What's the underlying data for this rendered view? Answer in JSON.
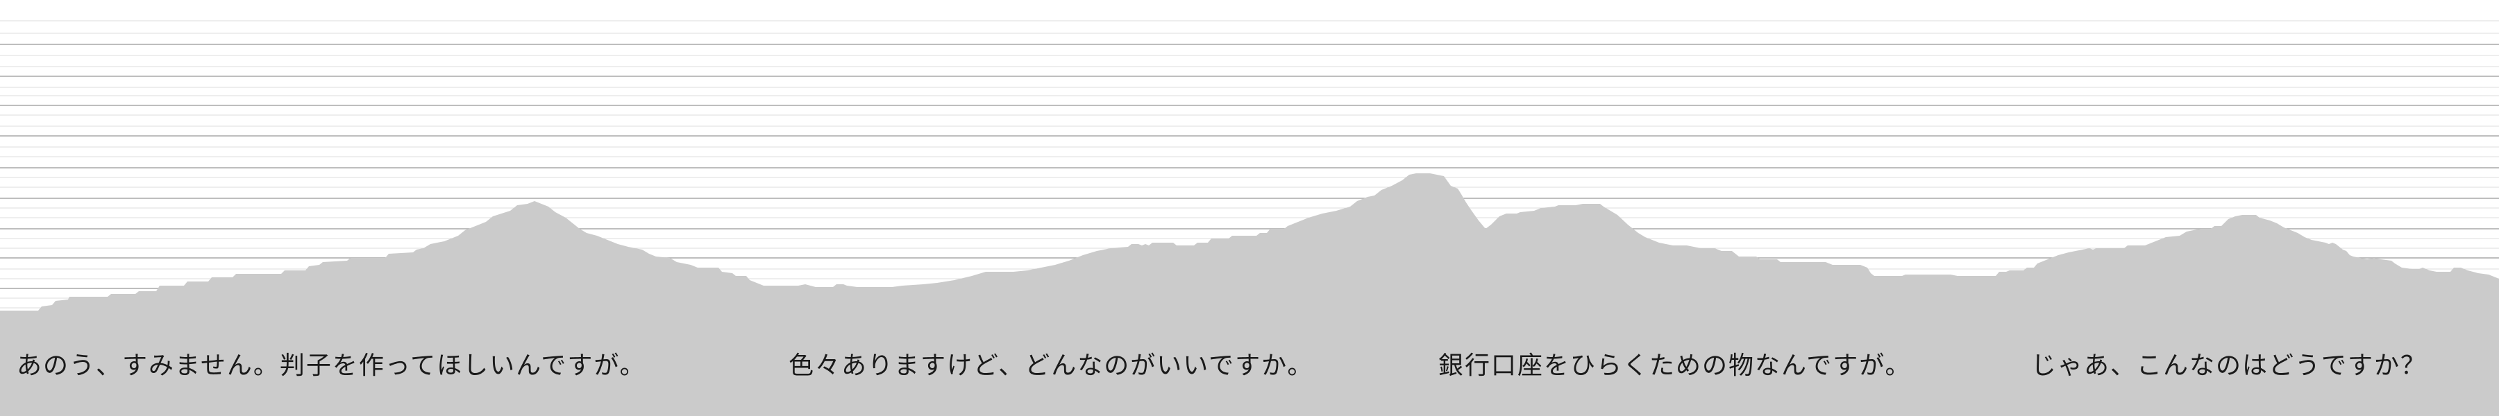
{
  "scene": {
    "background_color": "#ffffff",
    "mountain_color": "#cbcbcb",
    "line_color": "#9a9a9a"
  },
  "captions": [
    {
      "text": "あのう、すみません。判子を作ってほしいんですが。"
    },
    {
      "text": "色々ありますけど、どんなのがいいですか。"
    },
    {
      "text": "銀行口座をひらくための物なんですが。"
    },
    {
      "text": "じゃあ、こんなのはどうですか？"
    }
  ]
}
